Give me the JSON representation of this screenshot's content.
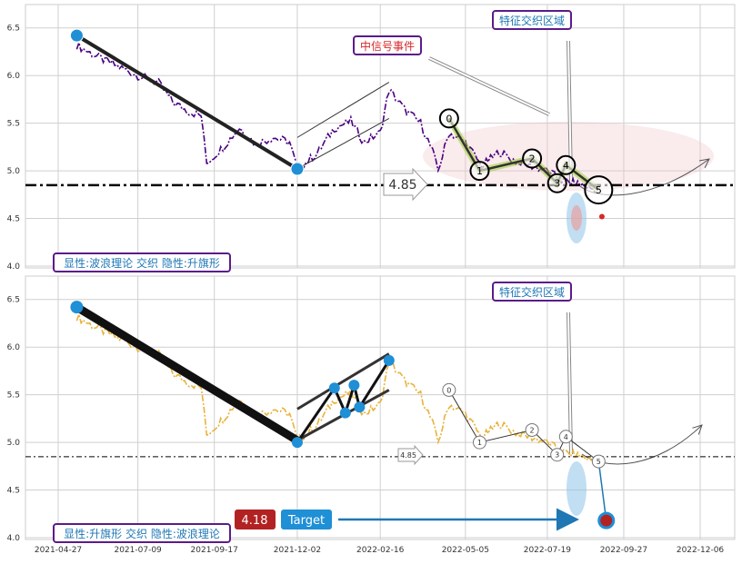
{
  "chart_data": [
    {
      "type": "line",
      "ylim": [
        4.0,
        6.65
      ],
      "yticks": [
        "4.0",
        "4.5",
        "5.0",
        "5.5",
        "6.0",
        "6.5"
      ],
      "grid": true,
      "price_color": "#4b0082",
      "price_style": "dash-dot",
      "price": [
        [
          "2021-05-14",
          6.32
        ],
        [
          "2021-06-01",
          6.2
        ],
        [
          "2021-06-20",
          6.1
        ],
        [
          "2021-07-09",
          6.0
        ],
        [
          "2021-07-28",
          5.92
        ],
        [
          "2021-08-10",
          5.72
        ],
        [
          "2021-08-25",
          5.62
        ],
        [
          "2021-09-05",
          5.58
        ],
        [
          "2021-09-10",
          5.08
        ],
        [
          "2021-09-25",
          5.25
        ],
        [
          "2021-10-10",
          5.45
        ],
        [
          "2021-10-25",
          5.28
        ],
        [
          "2021-11-10",
          5.35
        ],
        [
          "2021-11-25",
          5.3
        ],
        [
          "2021-12-02",
          5.02
        ],
        [
          "2021-12-20",
          5.18
        ],
        [
          "2022-01-05",
          5.45
        ],
        [
          "2022-01-20",
          5.52
        ],
        [
          "2022-02-01",
          5.3
        ],
        [
          "2022-02-16",
          5.4
        ],
        [
          "2022-02-24",
          5.85
        ],
        [
          "2022-03-10",
          5.65
        ],
        [
          "2022-03-25",
          5.5
        ],
        [
          "2022-04-05",
          5.2
        ],
        [
          "2022-04-10",
          5.0
        ],
        [
          "2022-04-20",
          5.4
        ],
        [
          "2022-05-05",
          5.3
        ],
        [
          "2022-05-20",
          5.05
        ],
        [
          "2022-06-05",
          5.2
        ],
        [
          "2022-06-20",
          5.1
        ],
        [
          "2022-07-05",
          5.05
        ],
        [
          "2022-07-19",
          5.0
        ],
        [
          "2022-08-01",
          4.9
        ],
        [
          "2022-08-20",
          4.85
        ],
        [
          "2022-09-01",
          4.8
        ],
        [
          "2022-09-05",
          4.75
        ]
      ],
      "support_line": 4.85,
      "support_label": "4.85",
      "wave_labels": [
        {
          "label": "0",
          "x": "2022-04-20",
          "y": 5.55
        },
        {
          "label": "1",
          "x": "2022-05-18",
          "y": 5.0
        },
        {
          "label": "2",
          "x": "2022-07-05",
          "y": 5.13
        },
        {
          "label": "3",
          "x": "2022-07-28",
          "y": 4.87
        },
        {
          "label": "4",
          "x": "2022-08-05",
          "y": 5.06
        },
        {
          "label": "5",
          "x": "2022-09-04",
          "y": 4.8
        }
      ],
      "flag_top": [
        [
          "2021-12-02",
          5.35
        ],
        [
          "2022-02-24",
          5.93
        ]
      ],
      "flag_bottom": [
        [
          "2021-12-02",
          5.02
        ],
        [
          "2022-02-24",
          5.55
        ]
      ],
      "trend_line": [
        [
          "2021-05-14",
          6.42
        ],
        [
          "2021-12-02",
          5.02
        ]
      ],
      "pivots": [
        {
          "x": "2021-05-14",
          "y": 6.42
        },
        {
          "x": "2021-12-02",
          "y": 5.02
        }
      ],
      "projection": {
        "x": "2022-09-07",
        "y": 4.52
      },
      "annotations": [
        {
          "text": "特征交织区域",
          "color": "#1f77b4"
        },
        {
          "text": "中信号事件",
          "color": "#d62728"
        },
        {
          "text": "显性:波浪理论 交织 隐性:升旗形",
          "color": "#1f77b4"
        }
      ]
    },
    {
      "type": "line",
      "ylim": [
        4.0,
        6.65
      ],
      "yticks": [
        "4.0",
        "4.5",
        "5.0",
        "5.5",
        "6.0",
        "6.5"
      ],
      "grid": true,
      "price_color": "#e8b23c",
      "price_style": "dash-dot",
      "xticks": [
        "2021-04-27",
        "2021-07-09",
        "2021-09-17",
        "2021-12-02",
        "2022-02-16",
        "2022-05-05",
        "2022-07-19",
        "2022-09-27",
        "2022-12-06"
      ],
      "support_line": 4.85,
      "support_label": "4.85",
      "flag_points": [
        {
          "x": "2021-12-02",
          "y": 5.0
        },
        {
          "x": "2022-01-05",
          "y": 5.57
        },
        {
          "x": "2022-01-15",
          "y": 5.31
        },
        {
          "x": "2022-01-23",
          "y": 5.6
        },
        {
          "x": "2022-01-28",
          "y": 5.37
        },
        {
          "x": "2022-02-24",
          "y": 5.86
        }
      ],
      "target_price": "4.18",
      "target_label": "Target",
      "target_point": {
        "x": "2022-09-11",
        "y": 4.18
      },
      "annotations": [
        {
          "text": "特征交织区域",
          "color": "#1f77b4"
        },
        {
          "text": "显性:升旗形 交织 隐性:波浪理论",
          "color": "#1f77b4"
        }
      ]
    }
  ]
}
